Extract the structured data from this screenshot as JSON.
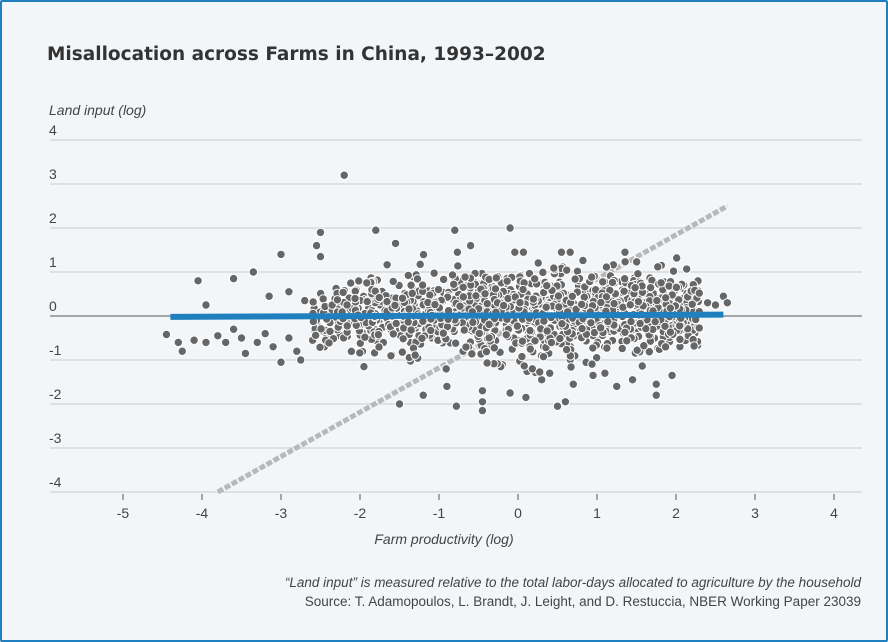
{
  "chart_data": {
    "type": "scatter",
    "title": "Misallocation across Farms in China, 1993–2002",
    "ylabel": "Land input (log)",
    "xlabel": "Farm productivity (log)",
    "xlim": [
      -6,
      4.3
    ],
    "ylim": [
      -4,
      4
    ],
    "xticks": [
      "-5",
      "-4",
      "-3",
      "-2",
      "-1",
      "0",
      "1",
      "2",
      "3",
      "4"
    ],
    "xtick_values": [
      -5,
      -4,
      -3,
      -2,
      -1,
      0,
      1,
      2,
      3,
      4
    ],
    "yticks": [
      "4",
      "3",
      "2",
      "1",
      "0",
      "-1",
      "-2",
      "-3",
      "-4"
    ],
    "ytick_values": [
      4,
      3,
      2,
      1,
      0,
      -1,
      -2,
      -3,
      -4
    ],
    "grid": "horizontal",
    "colors": {
      "points": "#666666",
      "fit": "#1f7fbf",
      "efficient": "#b8b8b8",
      "border": "#1f7fbf"
    },
    "series": [
      {
        "type": "line",
        "style": "solid-thick",
        "x": [
          -4.4,
          2.6
        ],
        "y": [
          -0.02,
          0.03
        ]
      },
      {
        "type": "line",
        "style": "dashed",
        "x": [
          -3.8,
          2.65
        ],
        "y": [
          -4.0,
          2.5
        ]
      },
      {
        "type": "scatter",
        "points": [
          [
            -2.2,
            3.2
          ],
          [
            -2.5,
            1.9
          ],
          [
            -0.8,
            1.95
          ],
          [
            -0.1,
            2.0
          ],
          [
            -1.8,
            1.95
          ],
          [
            -2.55,
            1.6
          ],
          [
            -3.0,
            1.4
          ],
          [
            -4.05,
            0.8
          ],
          [
            -3.6,
            0.85
          ],
          [
            -3.35,
            1.0
          ],
          [
            -2.5,
            1.35
          ],
          [
            -1.55,
            1.65
          ],
          [
            0.55,
            1.45
          ],
          [
            -0.6,
            1.6
          ],
          [
            -4.45,
            -0.42
          ],
          [
            -4.3,
            -0.6
          ],
          [
            -4.25,
            -0.8
          ],
          [
            -4.1,
            -0.55
          ],
          [
            -3.95,
            -0.6
          ],
          [
            -3.8,
            -0.45
          ],
          [
            -3.7,
            -0.6
          ],
          [
            -3.6,
            -0.3
          ],
          [
            -3.5,
            -0.5
          ],
          [
            -3.45,
            -0.85
          ],
          [
            -3.3,
            -0.6
          ],
          [
            -3.2,
            -0.4
          ],
          [
            -3.1,
            -0.7
          ],
          [
            -3.0,
            -1.05
          ],
          [
            -2.9,
            -0.5
          ],
          [
            -2.8,
            -0.8
          ],
          [
            -2.75,
            -1.0
          ],
          [
            -2.6,
            -0.55
          ],
          [
            -2.45,
            -0.7
          ],
          [
            -3.95,
            0.25
          ],
          [
            -3.15,
            0.45
          ],
          [
            -2.9,
            0.55
          ],
          [
            -2.7,
            0.35
          ],
          [
            -1.95,
            -1.15
          ],
          [
            -1.5,
            -2.0
          ],
          [
            -0.9,
            -1.6
          ],
          [
            -0.78,
            -2.05
          ],
          [
            -0.45,
            -1.7
          ],
          [
            -0.45,
            -1.95
          ],
          [
            -0.45,
            -2.15
          ],
          [
            -0.1,
            -1.75
          ],
          [
            0.1,
            -1.85
          ],
          [
            0.5,
            -2.05
          ],
          [
            0.6,
            -1.95
          ],
          [
            0.3,
            -1.45
          ],
          [
            0.7,
            -1.55
          ],
          [
            0.95,
            -1.35
          ],
          [
            1.1,
            -1.3
          ],
          [
            1.25,
            -1.6
          ],
          [
            1.45,
            -1.45
          ],
          [
            1.75,
            -1.8
          ],
          [
            1.75,
            -1.55
          ],
          [
            1.95,
            -1.35
          ],
          [
            2.05,
            -0.7
          ],
          [
            2.2,
            0.5
          ],
          [
            2.4,
            0.3
          ],
          [
            2.5,
            0.25
          ],
          [
            2.6,
            0.45
          ],
          [
            2.65,
            0.3
          ],
          [
            -1.2,
            -1.8
          ]
        ],
        "cloud": [
          {
            "x_range": [
              -2.6,
              2.3
            ],
            "y_center": 0.05,
            "spread": 0.55,
            "count": 1400
          }
        ]
      }
    ]
  },
  "footer": {
    "note": "“Land input” is measured relative to the total labor-days allocated to agriculture by the household",
    "source": "Source: T. Adamopoulos, L. Brandt, J. Leight, and D. Restuccia, NBER Working Paper 23039"
  }
}
